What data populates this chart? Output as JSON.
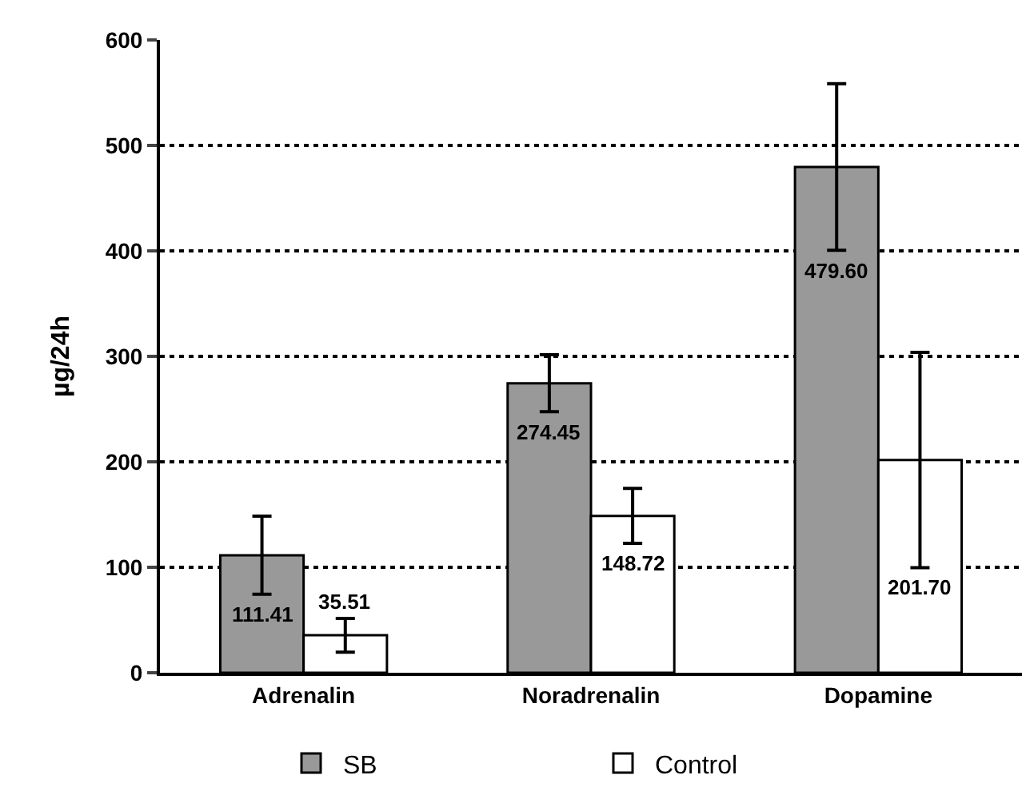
{
  "chart_data": {
    "type": "bar",
    "ylabel": "µg/24h",
    "categories": [
      "Adrenalin",
      "Noradrenalin",
      "Dopamine"
    ],
    "series": [
      {
        "name": "SB",
        "color": "#999999",
        "values": [
          111.41,
          274.45,
          479.6
        ],
        "errors": [
          37,
          27,
          79
        ],
        "value_labels": [
          "111.41",
          "274.45",
          "479.60"
        ]
      },
      {
        "name": "Control",
        "color": "#ffffff",
        "values": [
          35.51,
          148.72,
          201.7
        ],
        "errors": [
          16,
          26,
          102
        ],
        "value_labels": [
          "35.51",
          "148.72",
          "201.70"
        ]
      }
    ],
    "ylim": [
      0,
      600
    ],
    "yticks": [
      0,
      100,
      200,
      300,
      400,
      500,
      600
    ],
    "grid": "y",
    "legend": "bottom"
  }
}
